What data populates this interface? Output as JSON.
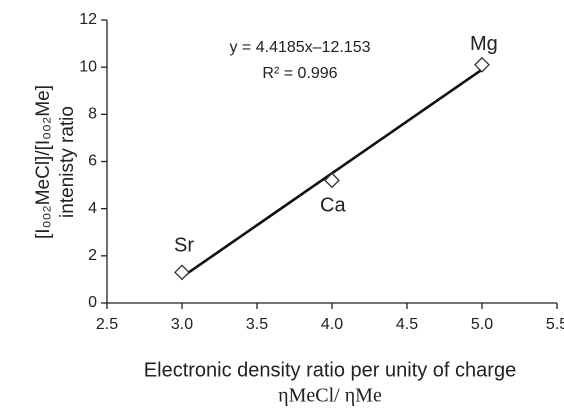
{
  "chart_data": {
    "type": "scatter",
    "x_label": [
      "Electronic density ratio per unity of charge",
      "ηMeCl/ ηMe"
    ],
    "y_label": [
      "[I₀₀₂MeCl]/[I₀₀₂Me]",
      "intenisty ratio"
    ],
    "equation": "y = 4.4185x–12.153",
    "r_squared": "R² = 0.996",
    "series": [
      {
        "labels": [
          "Sr",
          "Ca",
          "Mg"
        ],
        "x": [
          3,
          4,
          5
        ],
        "values": [
          1.3,
          5.2,
          10.1
        ],
        "color": "#ffffff"
      }
    ],
    "trendline": {
      "x": [
        3,
        5
      ],
      "values": [
        1.1,
        9.9
      ],
      "color": "#111111"
    },
    "xlim": [
      2.5,
      5.5
    ],
    "xticks": [
      2.5,
      {
        "value": 3,
        "label": "3.0"
      },
      3.5,
      {
        "value": 4,
        "label": "4.0"
      },
      4.5,
      {
        "value": 5,
        "label": "5.0"
      },
      5.5
    ],
    "ylim": [
      0,
      12
    ],
    "yticks": [
      0,
      2,
      4,
      6,
      8,
      10,
      12
    ],
    "grid": false
  }
}
